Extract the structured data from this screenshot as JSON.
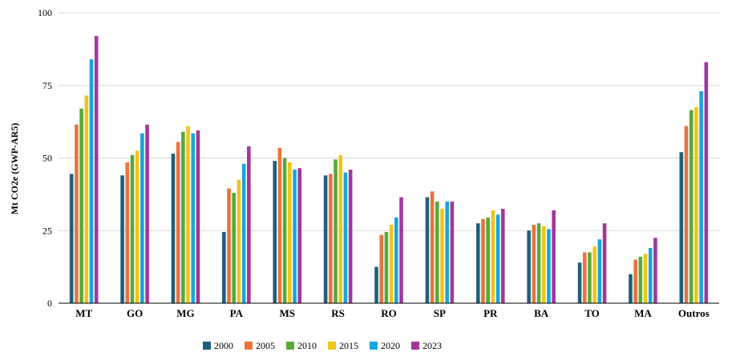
{
  "chart_data": {
    "type": "bar",
    "title": "",
    "xlabel": "",
    "ylabel": "Mt CO2e (GWP-AR5)",
    "ylim": [
      0,
      100
    ],
    "yticks": [
      "0",
      "25",
      "50",
      "75",
      "100"
    ],
    "ytick_values": [
      0,
      25,
      50,
      75,
      100
    ],
    "grid": true,
    "legend_position": "bottom",
    "categories": [
      "MT",
      "GO",
      "MG",
      "PA",
      "MS",
      "RS",
      "RO",
      "SP",
      "PR",
      "BA",
      "TO",
      "MA",
      "Outros"
    ],
    "series": [
      {
        "name": "2000",
        "color": "#1f5f7a",
        "values": [
          44.5,
          44,
          51.5,
          24.5,
          49,
          44,
          12.5,
          36.5,
          27.5,
          25,
          14,
          10,
          52
        ]
      },
      {
        "name": "2005",
        "color": "#e8743b",
        "values": [
          61.5,
          48.5,
          55.5,
          39.5,
          53.5,
          44.5,
          23.5,
          38.5,
          29,
          27,
          17.5,
          15,
          61
        ]
      },
      {
        "name": "2010",
        "color": "#5aa83a",
        "values": [
          67,
          51,
          59,
          38,
          50,
          49.5,
          24.5,
          35,
          29.5,
          27.5,
          17.5,
          16,
          66.5
        ]
      },
      {
        "name": "2015",
        "color": "#f0c419",
        "values": [
          71.5,
          52.5,
          61,
          42.5,
          48.5,
          51,
          27,
          32.5,
          32,
          26.5,
          19.5,
          17,
          67.5
        ]
      },
      {
        "name": "2020",
        "color": "#1aa3de",
        "values": [
          84,
          58.5,
          58.5,
          48,
          46,
          45,
          29.5,
          35,
          30.5,
          25.5,
          22,
          19,
          73
        ]
      },
      {
        "name": "2023",
        "color": "#a0389a",
        "values": [
          92,
          61.5,
          59.5,
          54,
          46.5,
          46,
          36.5,
          35,
          32.5,
          32,
          27.5,
          22.5,
          83
        ]
      }
    ]
  }
}
